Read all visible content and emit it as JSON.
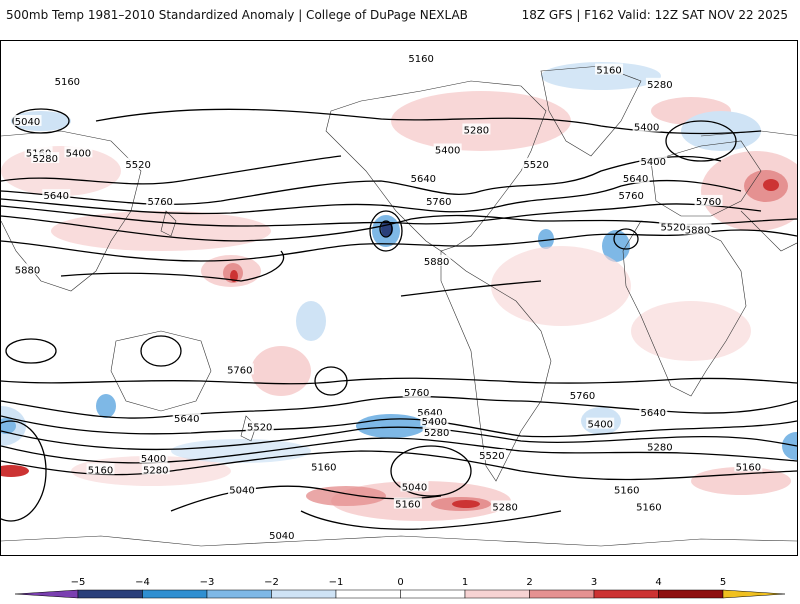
{
  "header": {
    "title": "500mb Temp 1981–2010 Standardized Anomaly | College of DuPage NEXLAB",
    "run_info": "18Z GFS | F162 Valid: 12Z SAT NOV 22 2025"
  },
  "map": {
    "projection": "equirectangular-global",
    "contour_field": "500mb height (dam)",
    "contour_labels": [
      {
        "label": "5160",
        "lon": -150,
        "lat": 76
      },
      {
        "label": "5160",
        "lon": 10,
        "lat": 84
      },
      {
        "label": "5160",
        "lon": 95,
        "lat": 80
      },
      {
        "label": "5280",
        "lon": 118,
        "lat": 75
      },
      {
        "label": "5040",
        "lon": -168,
        "lat": 62
      },
      {
        "label": "5160",
        "lon": -163,
        "lat": 51
      },
      {
        "label": "5280",
        "lon": -160,
        "lat": 49
      },
      {
        "label": "5400",
        "lon": -145,
        "lat": 51
      },
      {
        "label": "5520",
        "lon": -118,
        "lat": 47
      },
      {
        "label": "5640",
        "lon": -155,
        "lat": 36
      },
      {
        "label": "5760",
        "lon": -108,
        "lat": 34
      },
      {
        "label": "5760",
        "lon": 140,
        "lat": 34
      },
      {
        "label": "5880",
        "lon": 135,
        "lat": 24
      },
      {
        "label": "5880",
        "lon": -168,
        "lat": 10
      },
      {
        "label": "5280",
        "lon": 35,
        "lat": 59
      },
      {
        "label": "5400",
        "lon": 22,
        "lat": 52
      },
      {
        "label": "5520",
        "lon": 62,
        "lat": 47
      },
      {
        "label": "5640",
        "lon": 11,
        "lat": 42
      },
      {
        "label": "5760",
        "lon": 18,
        "lat": 34
      },
      {
        "label": "5880",
        "lon": 17,
        "lat": 13
      },
      {
        "label": "5400",
        "lon": 112,
        "lat": 60
      },
      {
        "label": "5400",
        "lon": 115,
        "lat": 48
      },
      {
        "label": "5640",
        "lon": 107,
        "lat": 42
      },
      {
        "label": "5760",
        "lon": 105,
        "lat": 36
      },
      {
        "label": "5520",
        "lon": 124,
        "lat": 25
      },
      {
        "label": "5760",
        "lon": -72,
        "lat": -25
      },
      {
        "label": "5760",
        "lon": 8,
        "lat": -33
      },
      {
        "label": "5760",
        "lon": 83,
        "lat": -34
      },
      {
        "label": "5640",
        "lon": -96,
        "lat": -42
      },
      {
        "label": "5640",
        "lon": 14,
        "lat": -40
      },
      {
        "label": "5640",
        "lon": 115,
        "lat": -40
      },
      {
        "label": "5520",
        "lon": -63,
        "lat": -45
      },
      {
        "label": "5400",
        "lon": 16,
        "lat": -43
      },
      {
        "label": "5280",
        "lon": 17,
        "lat": -47
      },
      {
        "label": "5520",
        "lon": 42,
        "lat": -55
      },
      {
        "label": "5400",
        "lon": 91,
        "lat": -44
      },
      {
        "label": "5280",
        "lon": 118,
        "lat": -52
      },
      {
        "label": "5160",
        "lon": 158,
        "lat": -59
      },
      {
        "label": "5400",
        "lon": -111,
        "lat": -56
      },
      {
        "label": "5280",
        "lon": -110,
        "lat": -60
      },
      {
        "label": "5160",
        "lon": -135,
        "lat": -60
      },
      {
        "label": "5160",
        "lon": -34,
        "lat": -59
      },
      {
        "label": "5040",
        "lon": -71,
        "lat": -67
      },
      {
        "label": "5040",
        "lon": 7,
        "lat": -66
      },
      {
        "label": "5160",
        "lon": 4,
        "lat": -72
      },
      {
        "label": "5280",
        "lon": 48,
        "lat": -73
      },
      {
        "label": "5160",
        "lon": 103,
        "lat": -67
      },
      {
        "label": "5160",
        "lon": 113,
        "lat": -73
      },
      {
        "label": "5040",
        "lon": -53,
        "lat": -83
      }
    ]
  },
  "colorbar": {
    "ticks": [
      "−5",
      "−4",
      "−3",
      "−2",
      "−1",
      "0",
      "1",
      "2",
      "3",
      "4",
      "5"
    ],
    "colors": [
      "#7a3fb0",
      "#2a3f7a",
      "#2f8fd1",
      "#7eb8e6",
      "#cfe3f5",
      "#ffffff",
      "#ffffff",
      "#f7d3d3",
      "#e59191",
      "#cc3333",
      "#8e0f0f",
      "#f0c020"
    ]
  }
}
